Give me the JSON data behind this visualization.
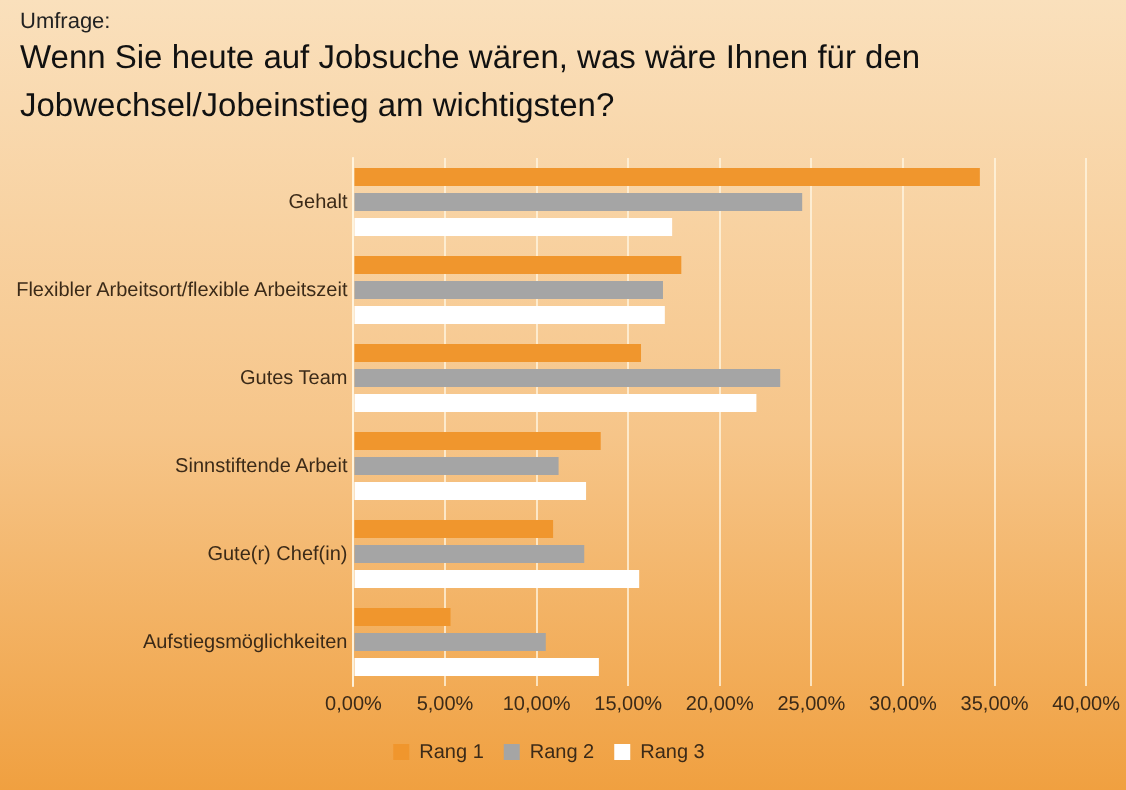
{
  "chart_data": {
    "type": "bar",
    "orientation": "horizontal",
    "subtitle": "Umfrage:",
    "title": "Wenn Sie heute auf Jobsuche wären, was wäre Ihnen für den Jobwechsel/Jobeinstieg am wichtigsten?",
    "categories": [
      "Gehalt",
      "Flexibler Arbeitsort/flexible Arbeitszeit",
      "Gutes Team",
      "Sinnstiftende Arbeit",
      "Gute(r) Chef(in)",
      "Aufstiegsmöglichkeiten"
    ],
    "series": [
      {
        "name": "Rang 1",
        "color": "#f0962d",
        "values": [
          34.2,
          17.9,
          15.7,
          13.5,
          10.9,
          5.3
        ]
      },
      {
        "name": "Rang 2",
        "color": "#a5a5a5",
        "values": [
          24.5,
          16.9,
          23.3,
          11.2,
          12.6,
          10.5
        ]
      },
      {
        "name": "Rang 3",
        "color": "#ffffff",
        "values": [
          17.4,
          17.0,
          22.0,
          12.7,
          15.6,
          13.4
        ]
      }
    ],
    "xlim": [
      0,
      40
    ],
    "xticks": [
      {
        "value": 0,
        "label": "0,00%"
      },
      {
        "value": 5,
        "label": "5,00%"
      },
      {
        "value": 10,
        "label": "10,00%"
      },
      {
        "value": 15,
        "label": "15,00%"
      },
      {
        "value": 20,
        "label": "20,00%"
      },
      {
        "value": 25,
        "label": "25,00%"
      },
      {
        "value": 30,
        "label": "30,00%"
      },
      {
        "value": 35,
        "label": "35,00%"
      },
      {
        "value": 40,
        "label": "40,00%"
      }
    ],
    "grid": "x",
    "legend": "bottom"
  }
}
